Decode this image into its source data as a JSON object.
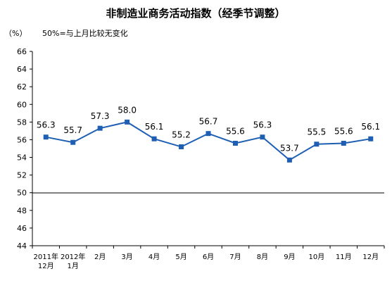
{
  "title": "非制造业商务活动指数（经季节调整）",
  "unit_label": "（%）",
  "note": "50%=与上月比较无变化",
  "colors": {
    "line": "#1f5fb3",
    "marker": "#1f5fb3",
    "axis": "#000000",
    "background": "#ffffff"
  },
  "chart_data": {
    "type": "line",
    "title": "非制造业商务活动指数（经季节调整）",
    "xlabel": "",
    "ylabel": "（%）",
    "ylim": [
      44,
      66
    ],
    "y_ticks": [
      44,
      46,
      48,
      50,
      52,
      54,
      56,
      58,
      60,
      62,
      64,
      66
    ],
    "grid": false,
    "categories": [
      "2011年\n12月",
      "2012年\n1月",
      "2月",
      "3月",
      "4月",
      "5月",
      "6月",
      "7月",
      "8月",
      "9月",
      "10月",
      "11月",
      "12月"
    ],
    "series": [
      {
        "values": [
          56.3,
          55.7,
          57.3,
          58.0,
          56.1,
          55.2,
          56.7,
          55.6,
          56.3,
          53.7,
          55.5,
          55.6,
          56.1
        ],
        "labels": [
          "56.3",
          "55.7",
          "57.3",
          "58.0",
          "56.1",
          "55.2",
          "56.7",
          "55.6",
          "56.3",
          "53.7",
          "55.5",
          "55.6",
          "56.1"
        ]
      }
    ]
  }
}
